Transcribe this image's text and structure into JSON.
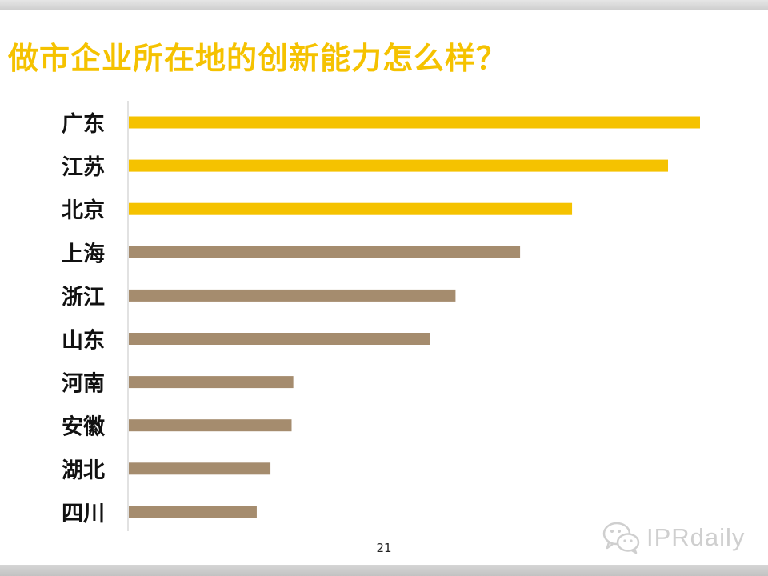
{
  "slide": {
    "title": "做市企业所在地的创新能力怎么样？",
    "page_number": "21",
    "watermark_text": "IPRdaily",
    "watermark_icon": "wechat-icon"
  },
  "colors": {
    "highlight": "#f5c200",
    "normal": "#a58c6e",
    "axis": "#d9d9d9",
    "title": "#f5c200"
  },
  "chart_data": {
    "type": "bar",
    "orientation": "horizontal",
    "title": "做市企业所在地的创新能力怎么样？",
    "xlabel": "",
    "ylabel": "",
    "categories": [
      "广东",
      "江苏",
      "北京",
      "上海",
      "浙江",
      "山东",
      "河南",
      "安徽",
      "湖北",
      "四川"
    ],
    "values": [
      100,
      94.4,
      77.6,
      68.5,
      57.2,
      52.7,
      28.8,
      28.5,
      24.8,
      22.4
    ],
    "highlighted": [
      true,
      true,
      true,
      false,
      false,
      false,
      false,
      false,
      false,
      false
    ],
    "xlim": [
      0,
      100
    ],
    "grid": false,
    "legend": "none",
    "value_labels": false
  }
}
